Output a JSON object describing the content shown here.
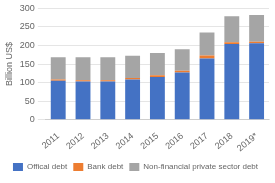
{
  "chart_data": {
    "type": "bar",
    "stacked": true,
    "categories": [
      "2011",
      "2012",
      "2013",
      "2014",
      "2015",
      "2016",
      "2017",
      "2018",
      "2019*"
    ],
    "series": [
      {
        "name": "Offical debt",
        "color": "#4472C4",
        "values": [
          105,
          103,
          103,
          108,
          115,
          127,
          165,
          204,
          206
        ]
      },
      {
        "name": "Bank debt",
        "color": "#ED7D31",
        "values": [
          3,
          3,
          3,
          4,
          5,
          5,
          8,
          5,
          4
        ]
      },
      {
        "name": "Non-financial private sector debt",
        "color": "#A5A5A5",
        "values": [
          60,
          62,
          62,
          60,
          60,
          58,
          62,
          70,
          72
        ]
      }
    ],
    "ylabel": "Billion US$",
    "ylim": [
      0,
      300
    ],
    "yticks": [
      0,
      50,
      100,
      150,
      200,
      250,
      300
    ],
    "grid": true,
    "legend": "bottom"
  }
}
